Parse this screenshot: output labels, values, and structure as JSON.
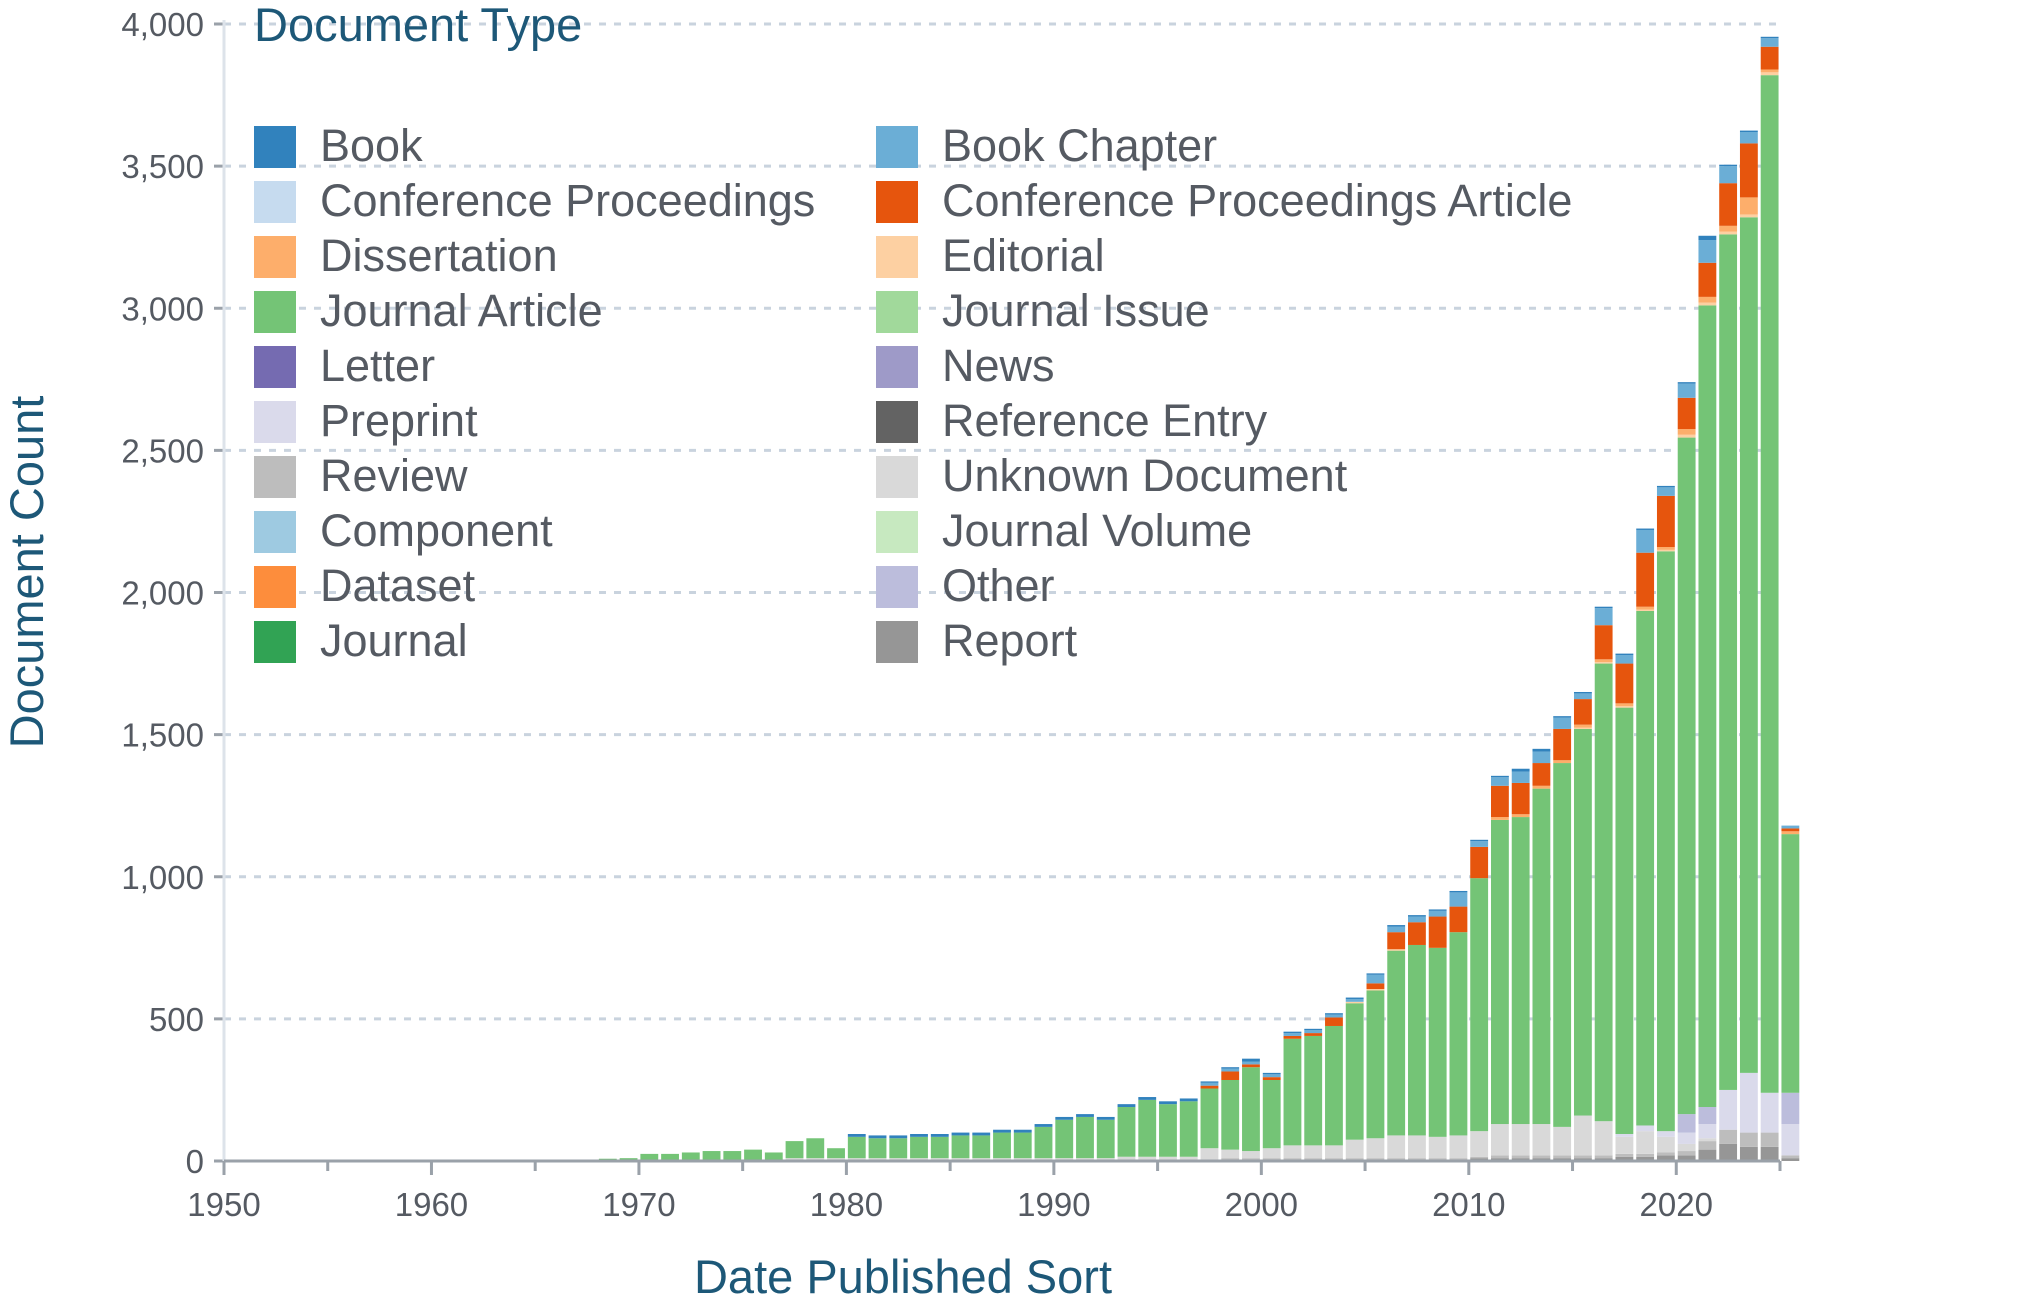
{
  "chart_data": {
    "type": "bar",
    "stacked": true,
    "title": "",
    "xlabel": "Date Published Sort",
    "ylabel": "Document Count",
    "xlim": [
      1950,
      2025
    ],
    "ylim": [
      0,
      4000
    ],
    "x_ticks": [
      "1950",
      "1960",
      "1970",
      "1980",
      "1990",
      "2000",
      "2010",
      "2020"
    ],
    "y_ticks": [
      "0",
      "500",
      "1,000",
      "1,500",
      "2,000",
      "2,500",
      "3,000",
      "3,500",
      "4,000"
    ],
    "grid": "horizontal",
    "legend": {
      "title": "Document Type",
      "placement": "top-left",
      "columns": 2,
      "entries": [
        {
          "name": "Book",
          "color": "#3182bd"
        },
        {
          "name": "Book Chapter",
          "color": "#6baed6"
        },
        {
          "name": "Conference Proceedings",
          "color": "#c6dbef"
        },
        {
          "name": "Conference Proceedings Article",
          "color": "#e6550d"
        },
        {
          "name": "Dissertation",
          "color": "#fdae6b"
        },
        {
          "name": "Editorial",
          "color": "#fdd0a2"
        },
        {
          "name": "Journal Article",
          "color": "#74c476"
        },
        {
          "name": "Journal Issue",
          "color": "#a1d99b"
        },
        {
          "name": "Letter",
          "color": "#756bb1"
        },
        {
          "name": "News",
          "color": "#9e9ac8"
        },
        {
          "name": "Preprint",
          "color": "#dadaeb"
        },
        {
          "name": "Reference Entry",
          "color": "#636363"
        },
        {
          "name": "Review",
          "color": "#bdbdbd"
        },
        {
          "name": "Unknown Document",
          "color": "#d9d9d9"
        },
        {
          "name": "Component",
          "color": "#9ecae1"
        },
        {
          "name": "Journal Volume",
          "color": "#c7e9c0"
        },
        {
          "name": "Dataset",
          "color": "#fd8d3c"
        },
        {
          "name": "Other",
          "color": "#bcbddc"
        },
        {
          "name": "Journal",
          "color": "#31a354"
        },
        {
          "name": "Report",
          "color": "#969696"
        }
      ]
    },
    "x": [
      1950,
      1951,
      1952,
      1953,
      1954,
      1955,
      1956,
      1957,
      1958,
      1959,
      1960,
      1961,
      1962,
      1963,
      1964,
      1965,
      1966,
      1967,
      1968,
      1969,
      1970,
      1971,
      1972,
      1973,
      1974,
      1975,
      1976,
      1977,
      1978,
      1979,
      1980,
      1981,
      1982,
      1983,
      1984,
      1985,
      1986,
      1987,
      1988,
      1989,
      1990,
      1991,
      1992,
      1993,
      1994,
      1995,
      1996,
      1997,
      1998,
      1999,
      2000,
      2001,
      2002,
      2003,
      2004,
      2005,
      2006,
      2007,
      2008,
      2009,
      2010,
      2011,
      2012,
      2013,
      2014,
      2015,
      2016,
      2017,
      2018,
      2019,
      2020,
      2021,
      2022,
      2023,
      2024,
      2025
    ],
    "series": [
      {
        "name": "Report",
        "values": [
          0,
          0,
          0,
          0,
          0,
          0,
          0,
          0,
          0,
          0,
          0,
          0,
          0,
          0,
          0,
          0,
          0,
          0,
          0,
          0,
          0,
          0,
          0,
          0,
          0,
          0,
          0,
          0,
          0,
          0,
          0,
          0,
          0,
          0,
          0,
          0,
          0,
          0,
          0,
          0,
          0,
          0,
          0,
          0,
          0,
          0,
          0,
          5,
          5,
          5,
          5,
          5,
          5,
          5,
          5,
          5,
          5,
          5,
          5,
          5,
          10,
          10,
          10,
          10,
          10,
          10,
          10,
          15,
          15,
          20,
          20,
          40,
          60,
          50,
          50,
          10
        ]
      },
      {
        "name": "Review",
        "values": [
          0,
          0,
          0,
          0,
          0,
          0,
          0,
          0,
          0,
          0,
          0,
          0,
          0,
          0,
          0,
          0,
          0,
          0,
          0,
          0,
          0,
          0,
          0,
          0,
          0,
          0,
          0,
          0,
          0,
          0,
          0,
          0,
          0,
          0,
          0,
          0,
          0,
          0,
          0,
          0,
          0,
          0,
          0,
          0,
          0,
          0,
          0,
          0,
          5,
          5,
          5,
          5,
          5,
          5,
          5,
          5,
          5,
          5,
          5,
          5,
          5,
          10,
          10,
          10,
          10,
          10,
          10,
          10,
          10,
          10,
          15,
          30,
          50,
          50,
          50,
          10
        ]
      },
      {
        "name": "Unknown Document",
        "values": [
          5,
          2,
          2,
          2,
          2,
          3,
          3,
          3,
          3,
          3,
          3,
          3,
          3,
          3,
          3,
          3,
          5,
          5,
          5,
          5,
          5,
          5,
          5,
          5,
          5,
          5,
          5,
          10,
          10,
          10,
          10,
          10,
          10,
          10,
          10,
          10,
          10,
          10,
          10,
          10,
          10,
          10,
          10,
          15,
          15,
          15,
          15,
          40,
          30,
          25,
          35,
          45,
          45,
          45,
          65,
          70,
          80,
          80,
          75,
          80,
          90,
          110,
          110,
          110,
          100,
          140,
          120,
          60,
          80,
          55,
          25,
          10,
          0,
          0,
          0,
          0
        ]
      },
      {
        "name": "Preprint",
        "values": [
          0,
          0,
          0,
          0,
          0,
          0,
          0,
          0,
          0,
          0,
          0,
          0,
          0,
          0,
          0,
          0,
          0,
          0,
          0,
          0,
          0,
          0,
          0,
          0,
          0,
          0,
          0,
          0,
          0,
          0,
          0,
          0,
          0,
          0,
          0,
          0,
          0,
          0,
          0,
          0,
          0,
          0,
          0,
          0,
          0,
          0,
          0,
          0,
          0,
          0,
          0,
          0,
          0,
          0,
          0,
          0,
          0,
          0,
          0,
          0,
          0,
          0,
          0,
          0,
          0,
          0,
          0,
          10,
          20,
          20,
          40,
          50,
          140,
          210,
          140,
          110
        ]
      },
      {
        "name": "Other",
        "values": [
          0,
          0,
          0,
          0,
          0,
          0,
          0,
          0,
          0,
          0,
          0,
          0,
          0,
          0,
          0,
          0,
          0,
          0,
          0,
          0,
          0,
          0,
          0,
          0,
          0,
          0,
          0,
          0,
          0,
          0,
          0,
          0,
          0,
          0,
          0,
          0,
          0,
          0,
          0,
          0,
          0,
          0,
          0,
          0,
          0,
          0,
          0,
          0,
          0,
          0,
          0,
          0,
          0,
          0,
          0,
          0,
          0,
          0,
          0,
          0,
          0,
          0,
          0,
          0,
          0,
          0,
          0,
          0,
          0,
          0,
          65,
          60,
          0,
          0,
          0,
          110
        ]
      },
      {
        "name": "Journal Article",
        "values": [
          0,
          0,
          0,
          0,
          0,
          0,
          0,
          0,
          0,
          0,
          0,
          0,
          0,
          0,
          0,
          0,
          0,
          0,
          3,
          5,
          20,
          20,
          25,
          30,
          30,
          35,
          25,
          60,
          70,
          35,
          75,
          70,
          70,
          75,
          75,
          80,
          80,
          90,
          90,
          110,
          135,
          145,
          135,
          175,
          200,
          185,
          195,
          210,
          245,
          295,
          240,
          375,
          385,
          420,
          480,
          520,
          650,
          670,
          665,
          715,
          890,
          1070,
          1080,
          1180,
          1280,
          1360,
          1610,
          1500,
          1810,
          2040,
          2380,
          2820,
          3010,
          3010,
          3580,
          910
        ]
      },
      {
        "name": "Editorial",
        "values": [
          0,
          0,
          0,
          0,
          0,
          0,
          0,
          0,
          0,
          0,
          0,
          0,
          0,
          0,
          0,
          0,
          0,
          0,
          0,
          0,
          0,
          0,
          0,
          0,
          0,
          0,
          0,
          0,
          0,
          0,
          0,
          0,
          0,
          0,
          0,
          0,
          0,
          0,
          0,
          0,
          0,
          0,
          0,
          0,
          0,
          0,
          0,
          0,
          0,
          0,
          0,
          0,
          0,
          0,
          5,
          5,
          5,
          0,
          0,
          0,
          0,
          0,
          0,
          0,
          0,
          5,
          5,
          5,
          5,
          5,
          10,
          10,
          10,
          10,
          10,
          0
        ]
      },
      {
        "name": "Dissertation",
        "values": [
          0,
          0,
          0,
          0,
          0,
          0,
          0,
          0,
          0,
          0,
          0,
          0,
          0,
          0,
          0,
          0,
          0,
          0,
          0,
          0,
          0,
          0,
          0,
          0,
          0,
          0,
          0,
          0,
          0,
          0,
          0,
          0,
          0,
          0,
          0,
          0,
          0,
          0,
          0,
          0,
          0,
          0,
          0,
          0,
          0,
          0,
          0,
          0,
          0,
          0,
          0,
          0,
          0,
          0,
          0,
          0,
          0,
          0,
          0,
          0,
          0,
          10,
          10,
          10,
          10,
          10,
          10,
          10,
          10,
          10,
          20,
          20,
          20,
          60,
          10,
          10
        ]
      },
      {
        "name": "Conference Proceedings Article",
        "values": [
          0,
          0,
          0,
          0,
          0,
          0,
          0,
          0,
          0,
          0,
          0,
          0,
          0,
          0,
          0,
          0,
          0,
          0,
          0,
          0,
          0,
          0,
          0,
          0,
          0,
          0,
          0,
          0,
          0,
          0,
          0,
          0,
          0,
          0,
          0,
          0,
          0,
          0,
          0,
          0,
          0,
          0,
          0,
          0,
          0,
          0,
          0,
          10,
          30,
          10,
          10,
          10,
          10,
          30,
          0,
          20,
          60,
          80,
          110,
          90,
          110,
          110,
          110,
          80,
          110,
          90,
          120,
          140,
          190,
          180,
          110,
          120,
          150,
          190,
          80,
          10
        ]
      },
      {
        "name": "Book Chapter",
        "values": [
          0,
          0,
          0,
          0,
          0,
          0,
          0,
          0,
          0,
          0,
          0,
          0,
          0,
          0,
          0,
          0,
          0,
          0,
          0,
          0,
          0,
          0,
          0,
          0,
          0,
          0,
          0,
          0,
          0,
          0,
          0,
          0,
          0,
          0,
          0,
          0,
          0,
          0,
          0,
          0,
          0,
          0,
          0,
          0,
          0,
          0,
          0,
          10,
          10,
          10,
          10,
          10,
          10,
          10,
          10,
          30,
          20,
          20,
          20,
          50,
          20,
          30,
          40,
          40,
          40,
          20,
          60,
          30,
          80,
          30,
          50,
          80,
          60,
          40,
          30,
          10
        ]
      },
      {
        "name": "Book",
        "values": [
          0,
          0,
          0,
          0,
          0,
          0,
          0,
          0,
          0,
          0,
          0,
          0,
          0,
          0,
          0,
          0,
          0,
          0,
          0,
          0,
          0,
          0,
          0,
          0,
          0,
          0,
          0,
          0,
          0,
          0,
          10,
          10,
          10,
          10,
          10,
          10,
          10,
          10,
          10,
          10,
          10,
          10,
          10,
          10,
          10,
          10,
          10,
          5,
          5,
          10,
          5,
          5,
          5,
          5,
          5,
          5,
          5,
          5,
          5,
          5,
          5,
          5,
          10,
          10,
          5,
          5,
          5,
          5,
          5,
          5,
          5,
          15,
          5,
          5,
          5,
          0
        ]
      }
    ]
  }
}
